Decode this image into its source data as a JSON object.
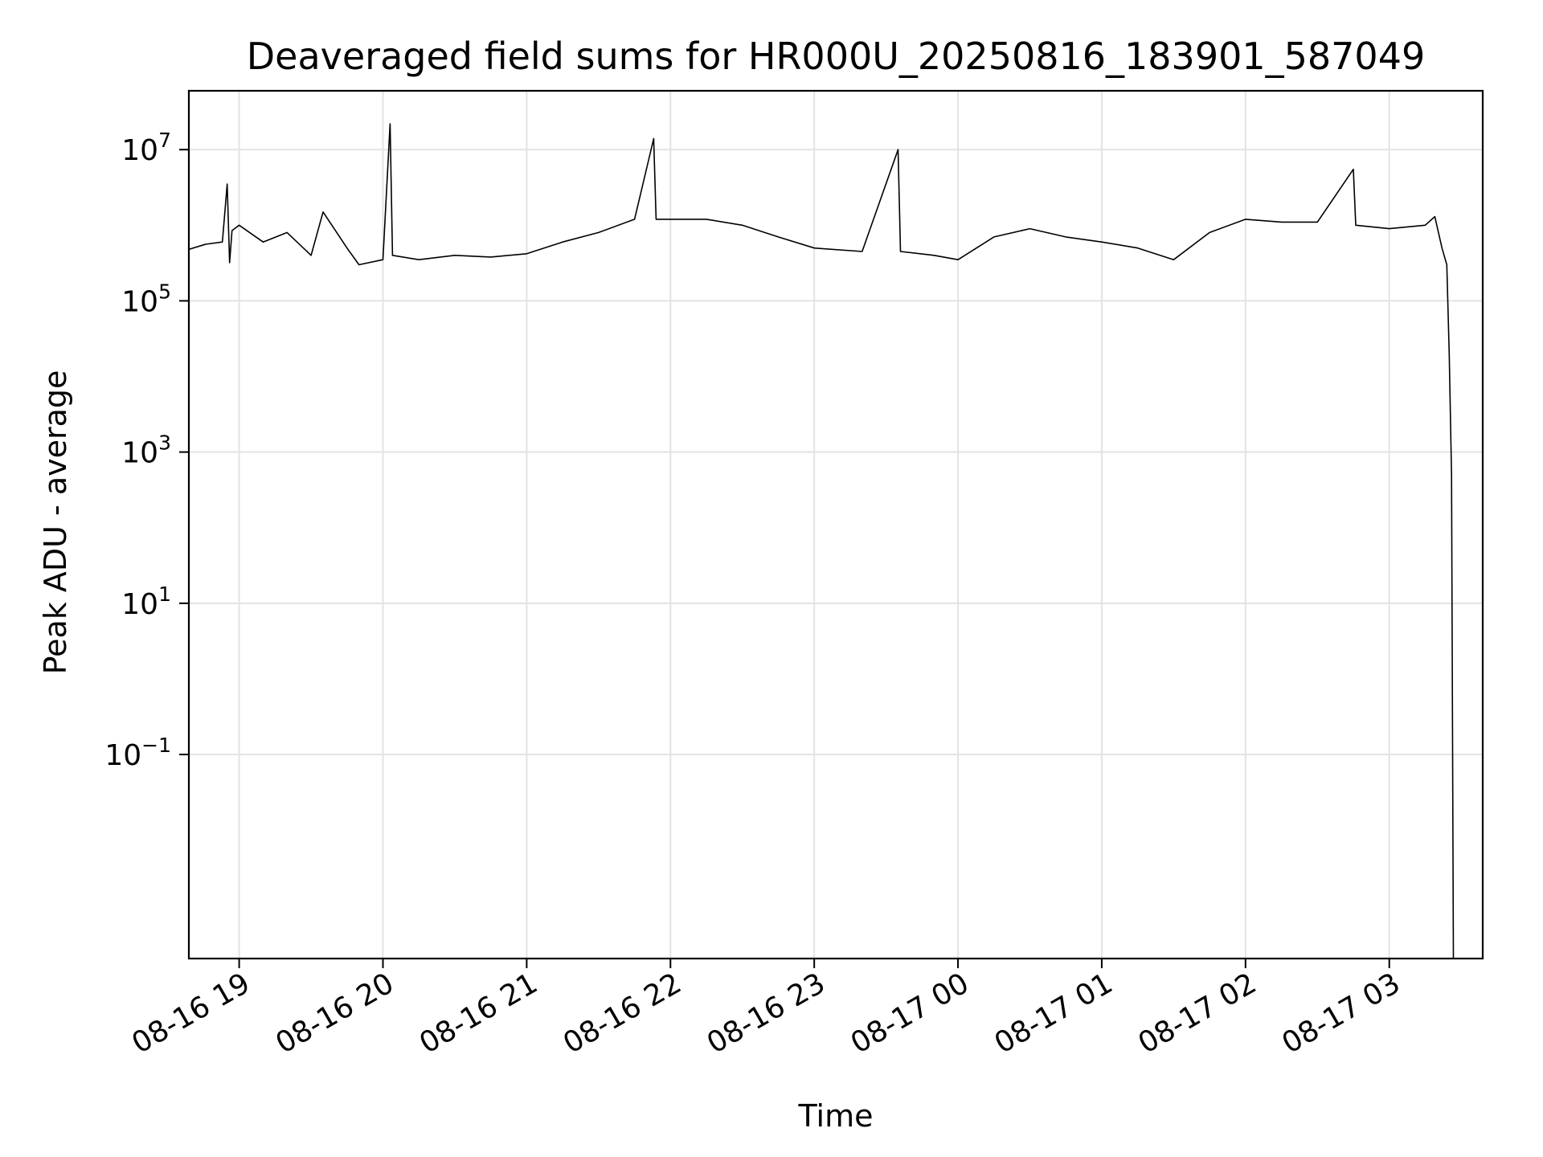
{
  "chart_data": {
    "type": "line",
    "title": "Deaveraged field sums for HR000U_20250816_183901_587049",
    "xlabel": "Time",
    "ylabel": "Peak ADU - average",
    "yscale": "log",
    "ylim": [
      0.0002,
      60000000.0
    ],
    "xlim": [
      "2025-08-16 18:39",
      "2025-08-17 03:39"
    ],
    "grid": true,
    "line_color": "#000000",
    "x_ticks": [
      {
        "value": "2025-08-16 19:00",
        "label": "08-16 19"
      },
      {
        "value": "2025-08-16 20:00",
        "label": "08-16 20"
      },
      {
        "value": "2025-08-16 21:00",
        "label": "08-16 21"
      },
      {
        "value": "2025-08-16 22:00",
        "label": "08-16 22"
      },
      {
        "value": "2025-08-16 23:00",
        "label": "08-16 23"
      },
      {
        "value": "2025-08-17 00:00",
        "label": "08-17 00"
      },
      {
        "value": "2025-08-17 01:00",
        "label": "08-17 01"
      },
      {
        "value": "2025-08-17 02:00",
        "label": "08-17 02"
      },
      {
        "value": "2025-08-17 03:00",
        "label": "08-17 03"
      }
    ],
    "y_ticks": [
      {
        "value": 10000000,
        "base": "10",
        "exp": "7"
      },
      {
        "value": 100000,
        "base": "10",
        "exp": "5"
      },
      {
        "value": 1000,
        "base": "10",
        "exp": "3"
      },
      {
        "value": 10,
        "base": "10",
        "exp": "1"
      },
      {
        "value": 0.1,
        "base": "10",
        "exp": "−1"
      }
    ],
    "series": [
      {
        "points": [
          [
            "2025-08-16 18:39",
            480000
          ],
          [
            "2025-08-16 18:46",
            560000
          ],
          [
            "2025-08-16 18:53",
            600000
          ],
          [
            "2025-08-16 18:55",
            3500000
          ],
          [
            "2025-08-16 18:56",
            320000
          ],
          [
            "2025-08-16 18:57",
            850000
          ],
          [
            "2025-08-16 19:00",
            1000000
          ],
          [
            "2025-08-16 19:10",
            600000
          ],
          [
            "2025-08-16 19:20",
            800000
          ],
          [
            "2025-08-16 19:30",
            400000
          ],
          [
            "2025-08-16 19:35",
            1500000
          ],
          [
            "2025-08-16 19:45",
            500000
          ],
          [
            "2025-08-16 19:50",
            300000
          ],
          [
            "2025-08-16 20:00",
            350000
          ],
          [
            "2025-08-16 20:03",
            22000000
          ],
          [
            "2025-08-16 20:04",
            400000
          ],
          [
            "2025-08-16 20:15",
            350000
          ],
          [
            "2025-08-16 20:30",
            400000
          ],
          [
            "2025-08-16 20:45",
            380000
          ],
          [
            "2025-08-16 21:00",
            420000
          ],
          [
            "2025-08-16 21:15",
            600000
          ],
          [
            "2025-08-16 21:30",
            800000
          ],
          [
            "2025-08-16 21:45",
            1200000
          ],
          [
            "2025-08-16 21:53",
            14000000
          ],
          [
            "2025-08-16 21:54",
            1200000
          ],
          [
            "2025-08-16 22:15",
            1200000
          ],
          [
            "2025-08-16 22:30",
            1000000
          ],
          [
            "2025-08-16 22:45",
            700000
          ],
          [
            "2025-08-16 23:00",
            500000
          ],
          [
            "2025-08-16 23:20",
            450000
          ],
          [
            "2025-08-16 23:35",
            10000000
          ],
          [
            "2025-08-16 23:36",
            450000
          ],
          [
            "2025-08-16 23:50",
            400000
          ],
          [
            "2025-08-17 00:00",
            350000
          ],
          [
            "2025-08-17 00:15",
            700000
          ],
          [
            "2025-08-17 00:30",
            900000
          ],
          [
            "2025-08-17 00:45",
            700000
          ],
          [
            "2025-08-17 01:00",
            600000
          ],
          [
            "2025-08-17 01:15",
            500000
          ],
          [
            "2025-08-17 01:30",
            350000
          ],
          [
            "2025-08-17 01:45",
            800000
          ],
          [
            "2025-08-17 02:00",
            1200000
          ],
          [
            "2025-08-17 02:15",
            1100000
          ],
          [
            "2025-08-17 02:30",
            1100000
          ],
          [
            "2025-08-17 02:45",
            5500000
          ],
          [
            "2025-08-17 02:46",
            1000000
          ],
          [
            "2025-08-17 03:00",
            900000
          ],
          [
            "2025-08-17 03:15",
            1000000
          ],
          [
            "2025-08-17 03:19",
            1300000
          ],
          [
            "2025-08-17 03:22",
            500000
          ],
          [
            "2025-08-17 03:24",
            300000
          ],
          [
            "2025-08-17 03:25",
            20000
          ],
          [
            "2025-08-17 03:26",
            500
          ],
          [
            "2025-08-17 03:26:45",
            0.0002
          ]
        ]
      }
    ]
  }
}
